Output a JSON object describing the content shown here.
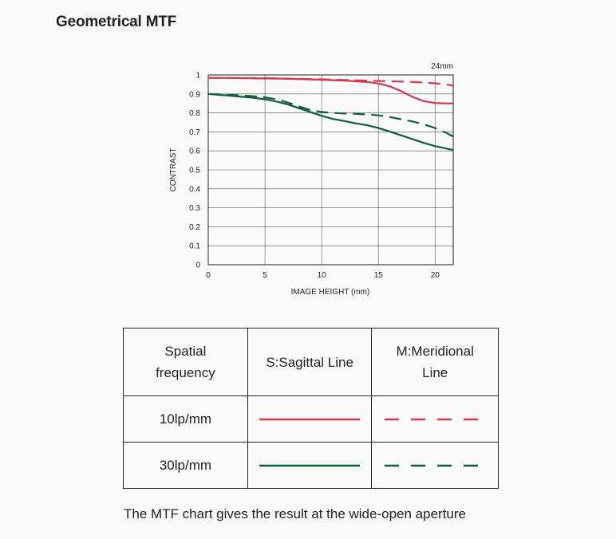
{
  "page": {
    "title": "Geometrical MTF",
    "caption": "The MTF chart gives the result at the wide-open aperture"
  },
  "chart_data": {
    "type": "line",
    "annotation": "24mm",
    "xlabel": "IMAGE HEIGHT (mm)",
    "ylabel": "CONTRAST",
    "xlim": [
      0,
      21.6
    ],
    "ylim": [
      0,
      1
    ],
    "x_ticks": [
      "0",
      "5",
      "10",
      "15",
      "20"
    ],
    "y_ticks": [
      "0",
      "0.1",
      "0.2",
      "0.3",
      "0.4",
      "0.5",
      "0.6",
      "0.7",
      "0.8",
      "0.9",
      "1"
    ],
    "grid": true,
    "series": [
      {
        "key": "s10",
        "color": "#d0394f",
        "style": "solid",
        "x": [
          0,
          2,
          4,
          6,
          8,
          10,
          12,
          14,
          15,
          16,
          17,
          18,
          19,
          20,
          21,
          21.6
        ],
        "y": [
          0.985,
          0.984,
          0.982,
          0.981,
          0.978,
          0.975,
          0.97,
          0.963,
          0.955,
          0.94,
          0.915,
          0.885,
          0.862,
          0.852,
          0.85,
          0.85
        ]
      },
      {
        "key": "m10",
        "color": "#d0394f",
        "style": "dashed",
        "x": [
          0,
          2,
          4,
          6,
          8,
          10,
          12,
          14,
          16,
          18,
          19,
          20,
          21,
          21.6
        ],
        "y": [
          0.985,
          0.984,
          0.983,
          0.982,
          0.98,
          0.977,
          0.973,
          0.97,
          0.967,
          0.963,
          0.96,
          0.956,
          0.95,
          0.943
        ]
      },
      {
        "key": "s30",
        "color": "#0f5e3a",
        "style": "solid",
        "x": [
          0,
          1,
          2,
          3,
          4,
          5,
          6,
          7,
          8,
          9,
          10,
          11,
          12,
          13,
          14,
          15,
          16,
          17,
          18,
          19,
          20,
          21,
          21.6
        ],
        "y": [
          0.9,
          0.895,
          0.89,
          0.885,
          0.88,
          0.872,
          0.86,
          0.845,
          0.825,
          0.805,
          0.785,
          0.768,
          0.757,
          0.745,
          0.735,
          0.72,
          0.702,
          0.682,
          0.662,
          0.642,
          0.625,
          0.612,
          0.604
        ]
      },
      {
        "key": "m30",
        "color": "#0f5e3a",
        "style": "dashed",
        "x": [
          0,
          1,
          2,
          3,
          4,
          5,
          6,
          7,
          8,
          9,
          10,
          11,
          12,
          13,
          14,
          15,
          16,
          17,
          18,
          19,
          20,
          21,
          21.6
        ],
        "y": [
          0.9,
          0.898,
          0.895,
          0.892,
          0.888,
          0.882,
          0.872,
          0.855,
          0.834,
          0.815,
          0.805,
          0.8,
          0.797,
          0.795,
          0.792,
          0.787,
          0.778,
          0.767,
          0.755,
          0.74,
          0.72,
          0.694,
          0.675
        ]
      }
    ]
  },
  "legend_table": {
    "header": {
      "col1": [
        "Spatial",
        "frequency"
      ],
      "col2": "S:Sagittal Line",
      "col3": [
        "M:Meridional",
        "Line"
      ]
    },
    "rows": [
      {
        "label": "10lp/mm",
        "color": "#d0394f"
      },
      {
        "label": "30lp/mm",
        "color": "#0f5e3a"
      }
    ]
  }
}
